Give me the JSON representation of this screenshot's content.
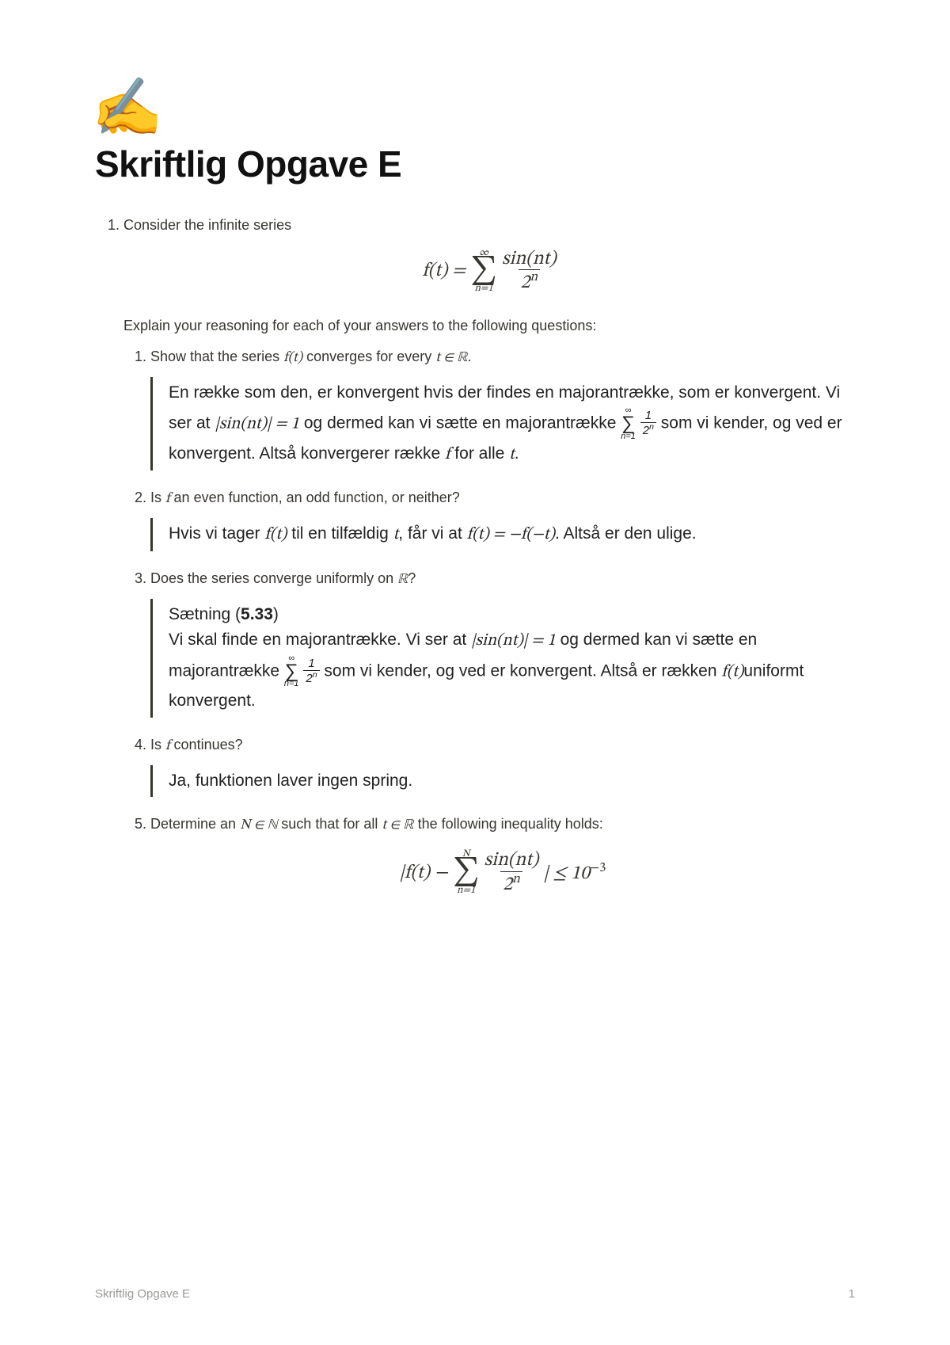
{
  "icon_emoji": "✍️",
  "title": "Skriftlig Opgave E",
  "q1_intro": "Consider the infinite series",
  "series_lhs": "f(t) = ",
  "sigma_top": "∞",
  "sigma_bot": "n=1",
  "frac_num": "sin(nt)",
  "frac_den": "2",
  "frac_den_exp": "n",
  "explain_line": "Explain your reasoning for each of your answers to the following questions:",
  "sub1": {
    "q_a": "Show that the series ",
    "q_b": " converges for every ",
    "q_c": ".",
    "ft": "f(t)",
    "tR": "t ∈ ℝ",
    "ans_a": "En række som den, er konvergent hvis der findes en majorantrække, som er konvergent. Vi ser at ",
    "abs_sin": "|sin(nt)| = 1",
    "ans_b": " og dermed kan vi sætte en majorantrække ",
    "ans_c": " som vi kender, og ved er konvergent. Altså konvergerer række ",
    "f": "f",
    "ans_d": " for alle ",
    "t": "t",
    "ans_e": "."
  },
  "sub2": {
    "q_a": "Is ",
    "f": "f",
    "q_b": " an even function, an odd function, or neither?",
    "ans_a": "Hvis vi tager ",
    "ft": "f(t)",
    "ans_b": " til en tilfældig ",
    "t": "t",
    "ans_c": ", får vi at ",
    "eq": "f(t) = −f(−t)",
    "ans_d": ". Altså er den ulige."
  },
  "sub3": {
    "q_a": "Does the series converge uniformly on ",
    "R": "ℝ",
    "q_b": "?",
    "ans_hdr": "Sætning (",
    "ans_hdr_b": "5.33",
    "ans_hdr_c": ")",
    "ans_a": "Vi skal finde en majorantrække. Vi ser at ",
    "abs_sin": "|sin(nt)| = 1",
    "ans_b": " og dermed kan vi sætte en majorantrække ",
    "ans_c": " som vi kender, og ved er konvergent. Altså er rækken ",
    "ft": "f(t)",
    "ans_d": "uniformt konvergent."
  },
  "sub4": {
    "q_a": "Is ",
    "f": "f",
    "q_b": " continues?",
    "ans": "Ja, funktionen laver ingen spring."
  },
  "sub5": {
    "q_a": "Determine an ",
    "NinN": "N ∈ ℕ",
    "q_b": " such that for all ",
    "tR": "t ∈ ℝ",
    "q_c": " the following inequality holds:",
    "eq_lhs_a": "|f(t) − ",
    "sigma_top": "N",
    "sigma_bot": "n=1",
    "eq_rhs": "| ≤ 10",
    "eq_exp": "−3"
  },
  "small_frac_num": "1",
  "small_frac_den": "2",
  "small_frac_exp": "n",
  "footer_title": "Skriftlig Opgave E",
  "footer_page": "1"
}
